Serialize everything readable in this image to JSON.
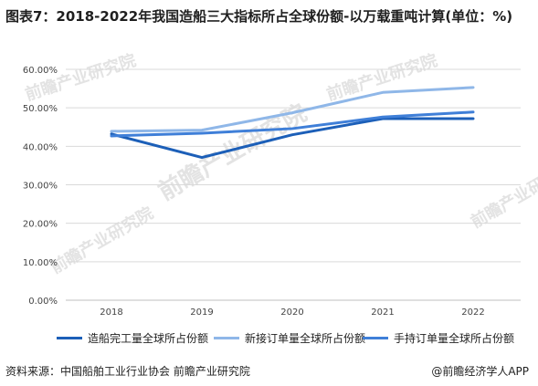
{
  "title": "图表7：2018-2022年我国造船三大指标所占全球份额-以万载重吨计算(单位：%)",
  "source": "资料来源：中国船舶工业行业协会 前瞻产业研究院",
  "credit": "@前瞻经济学人APP",
  "watermark": "前瞻产业研究院",
  "chart_data": {
    "type": "line",
    "title": "图表7：2018-2022年我国造船三大指标所占全球份额-以万载重吨计算(单位：%)",
    "xlabel": "",
    "ylabel": "",
    "categories": [
      "2018",
      "2019",
      "2020",
      "2021",
      "2022"
    ],
    "y_ticks": [
      "0.00%",
      "10.00%",
      "20.00%",
      "30.00%",
      "40.00%",
      "50.00%",
      "60.00%"
    ],
    "ylim": [
      0,
      60
    ],
    "grid": true,
    "legend_position": "bottom",
    "series": [
      {
        "name": "造船完工量全球所占份额",
        "color": "#1c5fb8",
        "values": [
          43.2,
          37.1,
          43.0,
          47.2,
          47.2
        ]
      },
      {
        "name": "新接订单量全球所占份额",
        "color": "#8fb7e8",
        "values": [
          43.9,
          44.2,
          48.7,
          54.0,
          55.3
        ]
      },
      {
        "name": "手持订单量全球所占份额",
        "color": "#3f7fd8",
        "values": [
          42.7,
          43.4,
          44.6,
          47.6,
          48.9
        ]
      }
    ]
  }
}
